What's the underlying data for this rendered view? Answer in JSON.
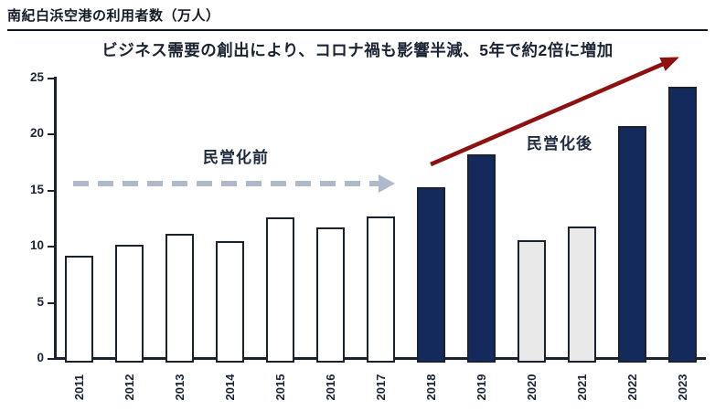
{
  "header": {
    "title": "南紀白浜空港の利用者数（万人）"
  },
  "subtitle": "ビジネス需要の創出により、コロナ禍も影響半減、5年で約2倍に増加",
  "annotations": {
    "pre_privatization_label": "民営化前",
    "post_privatization_label": "民営化後"
  },
  "colors": {
    "navy": "#152a5c",
    "gray": "#e9e9e9",
    "white": "#ffffff",
    "bar_outline": "#1a2230",
    "red_arrow": "#8e1111",
    "dashed_arrow": "#aeb9cc",
    "text": "#1b2433"
  },
  "chart_data": {
    "type": "bar",
    "title": "南紀白浜空港の利用者数（万人）",
    "xlabel": "",
    "ylabel": "",
    "categories": [
      "2011",
      "2012",
      "2013",
      "2014",
      "2015",
      "2016",
      "2017",
      "2018",
      "2019",
      "2020",
      "2021",
      "2022",
      "2023"
    ],
    "values": [
      9.2,
      10.2,
      11.1,
      10.5,
      12.6,
      11.7,
      12.7,
      15.3,
      18.2,
      10.6,
      11.8,
      20.7,
      24.2
    ],
    "bar_styles": [
      "white",
      "white",
      "white",
      "white",
      "white",
      "white",
      "white",
      "navy",
      "navy",
      "gray",
      "gray",
      "navy",
      "navy"
    ],
    "yticks": [
      0,
      5,
      10,
      15,
      20,
      25
    ],
    "ylim": [
      0,
      25
    ],
    "grid": false,
    "legend": "none",
    "annotations": [
      {
        "text": "民営化前",
        "type": "dashed-arrow",
        "covers": "2011-2017",
        "level": 15.5
      },
      {
        "text": "民営化後",
        "type": "solid-red-arrow",
        "covers": "2018-2023"
      }
    ]
  }
}
